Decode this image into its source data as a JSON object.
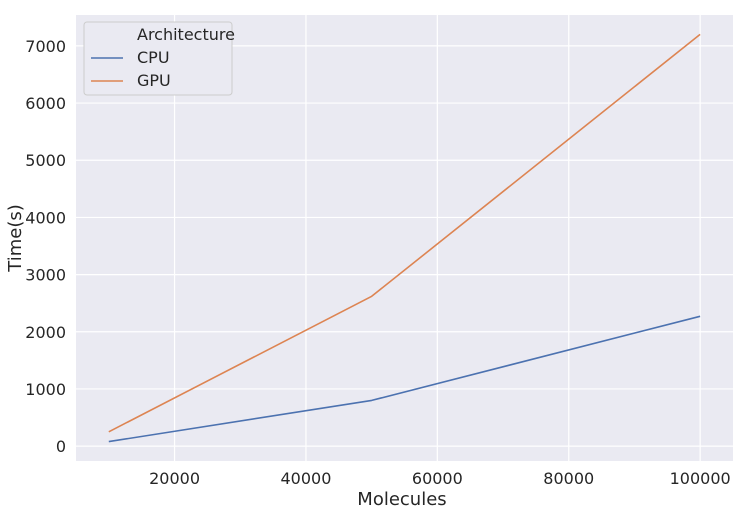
{
  "chart_data": {
    "type": "line",
    "xlabel": "Molecules",
    "ylabel": "Time(s)",
    "xlim": [
      5000,
      105000
    ],
    "ylim": [
      -260,
      7540
    ],
    "xticks": [
      20000,
      40000,
      60000,
      80000,
      100000
    ],
    "yticks": [
      0,
      1000,
      2000,
      3000,
      4000,
      5000,
      6000,
      7000
    ],
    "grid": true,
    "legend": {
      "title": "Architecture",
      "placement": "top-left"
    },
    "series": [
      {
        "name": "CPU",
        "color": "#4c72b0",
        "x": [
          10000,
          50000,
          100000
        ],
        "y": [
          80,
          800,
          2270
        ]
      },
      {
        "name": "GPU",
        "color": "#dd8452",
        "x": [
          10000,
          50000,
          100000
        ],
        "y": [
          250,
          2620,
          7200
        ]
      }
    ]
  }
}
